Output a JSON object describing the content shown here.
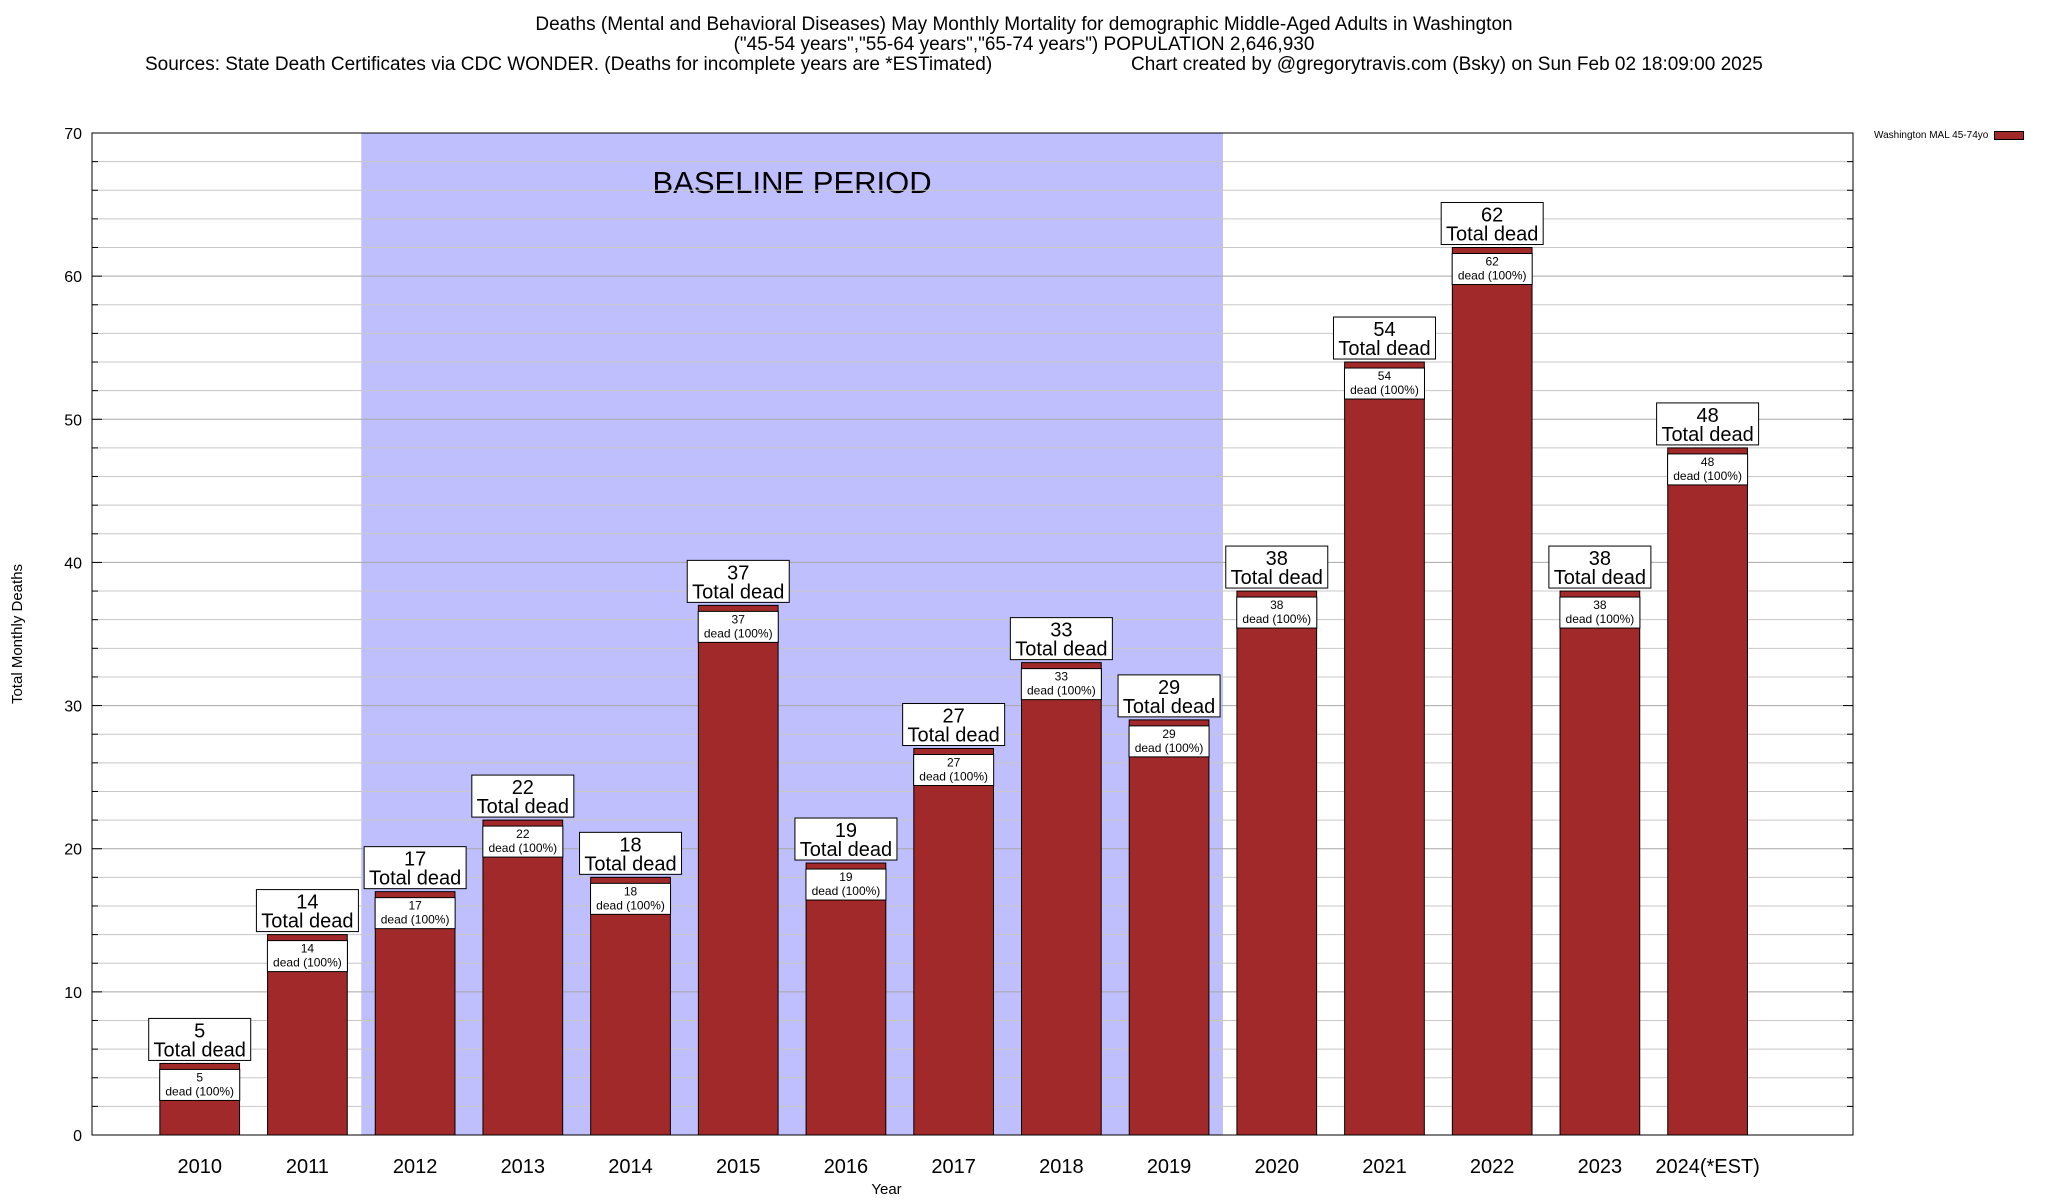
{
  "title": {
    "line1": "Deaths (Mental and Behavioral Diseases) May Monthly Mortality for demographic Middle-Aged Adults in Washington",
    "line2": "(\"45-54 years\",\"55-64 years\",\"65-74 years\") POPULATION 2,646,930",
    "sources": "Sources: State Death Certificates via CDC WONDER. (Deaths for incomplete years are *ESTimated)",
    "credit": "Chart created by @gregorytravis.com (Bsky) on Sun Feb 02 18:09:00 2025"
  },
  "chart_data": {
    "type": "bar",
    "categories": [
      "2010",
      "2011",
      "2012",
      "2013",
      "2014",
      "2015",
      "2016",
      "2017",
      "2018",
      "2019",
      "2020",
      "2021",
      "2022",
      "2023",
      "2024(*EST)"
    ],
    "series": [
      {
        "name": "Washington MAL 45-74yo",
        "values": [
          5,
          14,
          17,
          22,
          18,
          37,
          19,
          27,
          33,
          29,
          38,
          54,
          62,
          38,
          48
        ],
        "color": "#a2292a"
      }
    ],
    "xlabel": "Year",
    "ylabel": "Total Monthly Deaths",
    "ylim": [
      0,
      70
    ],
    "yticks": [
      0,
      10,
      20,
      30,
      40,
      50,
      60,
      70
    ],
    "grid": true,
    "legend_position": "top-right outside",
    "shaded_region": {
      "label": "BASELINE PERIOD",
      "from": "2012",
      "to": "2019",
      "color": "#bfbffd"
    },
    "top_label_suffix": "Total dead",
    "inner_label_suffix": "dead (100%)"
  }
}
